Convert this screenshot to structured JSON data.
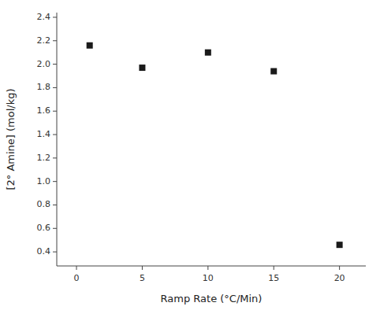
{
  "chart_data": {
    "type": "scatter",
    "x": [
      1,
      5,
      10,
      15,
      20
    ],
    "values": [
      2.16,
      1.97,
      2.1,
      1.94,
      0.46
    ],
    "xlabel": "Ramp Rate (°C/Min)",
    "ylabel": "[2° Amine] (mol/kg)",
    "xlim": [
      -1.5,
      22
    ],
    "ylim": [
      0.28,
      2.44
    ],
    "xticks": [
      0,
      5,
      10,
      15,
      20
    ],
    "yticks": [
      0.4,
      0.6,
      0.8,
      {
        "value": 1.0,
        "label": "1.0"
      },
      1.2,
      1.4,
      1.6,
      1.8,
      {
        "value": 2.0,
        "label": "2.0"
      },
      2.2,
      2.4
    ],
    "marker": "square",
    "color": "#1a1a1a",
    "grid": false
  }
}
